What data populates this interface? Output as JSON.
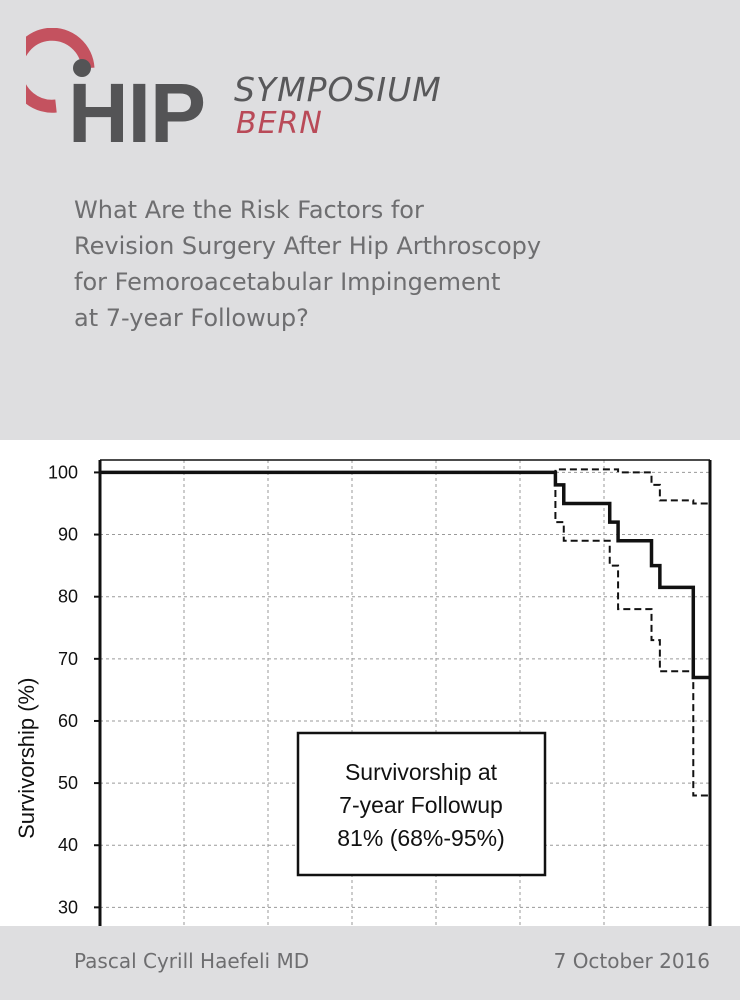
{
  "logo": {
    "word": "HIP",
    "line1": "SYMPOSIUM",
    "line2": "BERN",
    "colors": {
      "arc": "#b94a58",
      "text": "#545456"
    }
  },
  "title_lines": [
    "What Are the Risk Factors for",
    "Revision Surgery After Hip Arthroscopy",
    "for Femoroacetabular Impingement",
    "at 7-year Followup?"
  ],
  "footer": {
    "author": "Pascal Cyrill Haefeli MD",
    "date": "7 October 2016"
  },
  "chart_data": {
    "type": "line",
    "title": "",
    "xlabel": "",
    "ylabel": "Survivorship (%)",
    "xlim": [
      0,
      7.3
    ],
    "ylim": [
      27,
      102
    ],
    "yticks": [
      100,
      90,
      80,
      70,
      60,
      50,
      40,
      30
    ],
    "grid": true,
    "series": [
      {
        "style": "solid",
        "step": true,
        "x": [
          0,
          5.45,
          5.55,
          6.1,
          6.2,
          6.6,
          6.7,
          7.1,
          7.3
        ],
        "y": [
          100,
          98,
          95,
          92,
          89,
          85,
          81.5,
          67,
          67
        ]
      },
      {
        "style": "dashed",
        "step": true,
        "x": [
          0,
          5.45,
          5.55,
          6.1,
          6.2,
          6.6,
          6.7,
          7.1,
          7.3
        ],
        "y": [
          100,
          92,
          89,
          85,
          78,
          73,
          68,
          48,
          48
        ]
      },
      {
        "style": "dashed",
        "step": true,
        "x": [
          0,
          5.45,
          6.2,
          6.6,
          6.7,
          7.1,
          7.3
        ],
        "y": [
          100,
          100.5,
          100,
          98,
          95.5,
          95,
          86
        ]
      }
    ],
    "annotation": {
      "lines": [
        "Survivorship at",
        "7-year Followup",
        "81% (68%-95%)"
      ]
    }
  }
}
